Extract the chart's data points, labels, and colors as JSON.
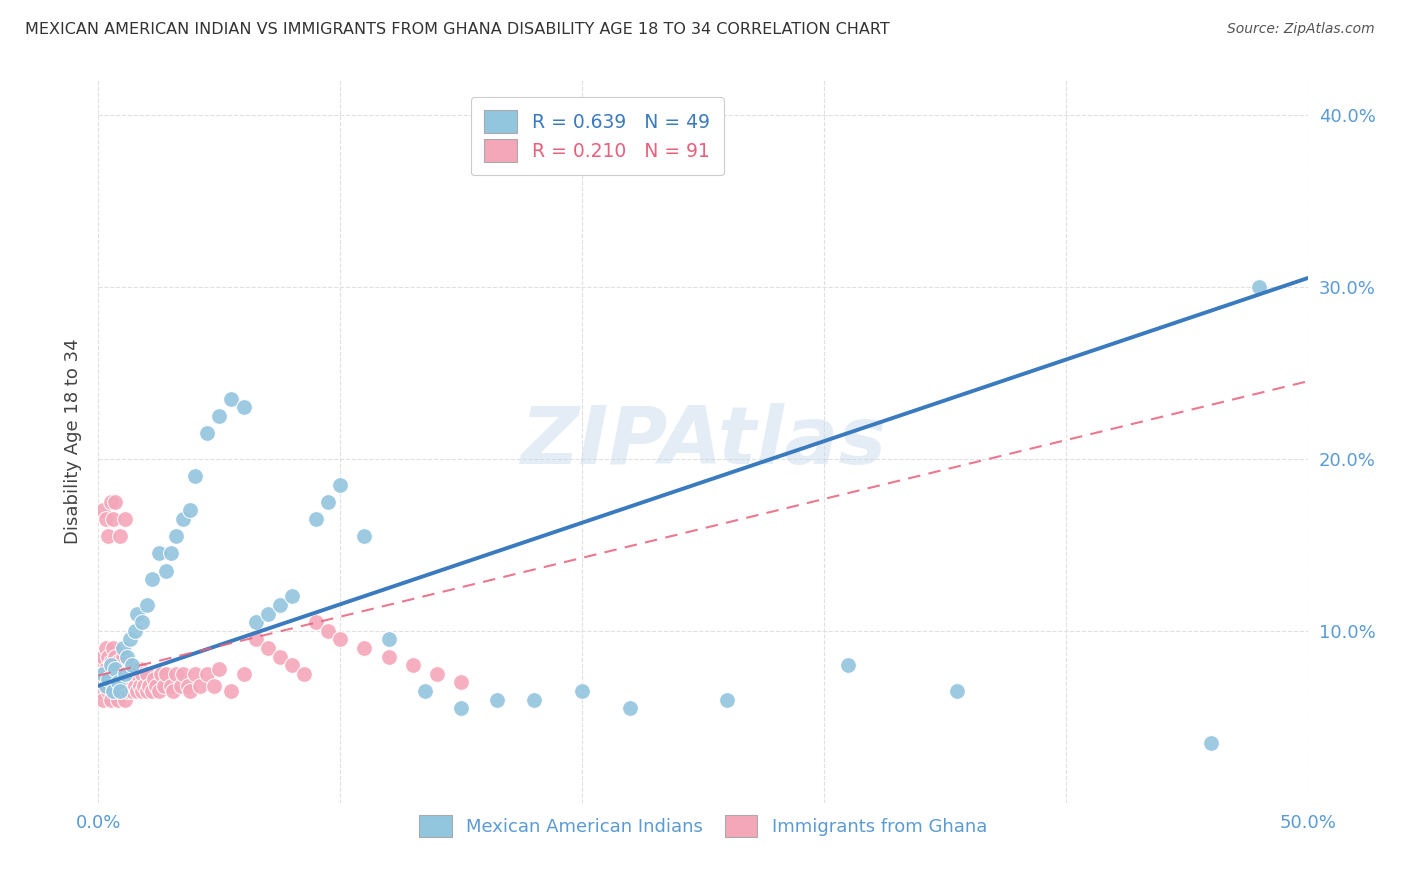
{
  "title": "MEXICAN AMERICAN INDIAN VS IMMIGRANTS FROM GHANA DISABILITY AGE 18 TO 34 CORRELATION CHART",
  "source": "Source: ZipAtlas.com",
  "ylabel": "Disability Age 18 to 34",
  "xlim": [
    0.0,
    0.5
  ],
  "ylim": [
    0.0,
    0.42
  ],
  "blue_color": "#92c5de",
  "pink_color": "#f4a7b9",
  "trend_blue": "#3a7abf",
  "trend_pink": "#e8607a",
  "background_color": "#ffffff",
  "grid_color": "#e0e0e0",
  "tick_color": "#5b9bd5",
  "blue_trend_x": [
    0.0,
    0.5
  ],
  "blue_trend_y": [
    0.068,
    0.305
  ],
  "pink_trend_x": [
    0.0,
    0.5
  ],
  "pink_trend_y": [
    0.074,
    0.245
  ],
  "blue_x": [
    0.002,
    0.003,
    0.004,
    0.005,
    0.006,
    0.007,
    0.008,
    0.009,
    0.01,
    0.011,
    0.012,
    0.013,
    0.014,
    0.015,
    0.016,
    0.018,
    0.02,
    0.022,
    0.025,
    0.028,
    0.03,
    0.032,
    0.035,
    0.038,
    0.04,
    0.045,
    0.05,
    0.055,
    0.06,
    0.065,
    0.07,
    0.075,
    0.08,
    0.09,
    0.095,
    0.1,
    0.11,
    0.12,
    0.135,
    0.15,
    0.165,
    0.18,
    0.2,
    0.22,
    0.26,
    0.31,
    0.355,
    0.46,
    0.48
  ],
  "blue_y": [
    0.075,
    0.068,
    0.072,
    0.08,
    0.065,
    0.078,
    0.07,
    0.065,
    0.09,
    0.075,
    0.085,
    0.095,
    0.08,
    0.1,
    0.11,
    0.105,
    0.115,
    0.13,
    0.145,
    0.135,
    0.145,
    0.155,
    0.165,
    0.17,
    0.19,
    0.215,
    0.225,
    0.235,
    0.23,
    0.105,
    0.11,
    0.115,
    0.12,
    0.165,
    0.175,
    0.185,
    0.155,
    0.095,
    0.065,
    0.055,
    0.06,
    0.06,
    0.065,
    0.055,
    0.06,
    0.08,
    0.065,
    0.035,
    0.3
  ],
  "pink_x": [
    0.001,
    0.001,
    0.001,
    0.002,
    0.002,
    0.002,
    0.003,
    0.003,
    0.003,
    0.004,
    0.004,
    0.004,
    0.005,
    0.005,
    0.005,
    0.006,
    0.006,
    0.006,
    0.007,
    0.007,
    0.007,
    0.008,
    0.008,
    0.008,
    0.009,
    0.009,
    0.01,
    0.01,
    0.01,
    0.011,
    0.011,
    0.012,
    0.012,
    0.013,
    0.013,
    0.014,
    0.014,
    0.015,
    0.015,
    0.016,
    0.016,
    0.017,
    0.017,
    0.018,
    0.018,
    0.019,
    0.02,
    0.02,
    0.021,
    0.022,
    0.023,
    0.024,
    0.025,
    0.026,
    0.027,
    0.028,
    0.03,
    0.031,
    0.032,
    0.034,
    0.035,
    0.037,
    0.038,
    0.04,
    0.042,
    0.045,
    0.048,
    0.05,
    0.055,
    0.06,
    0.065,
    0.07,
    0.075,
    0.08,
    0.085,
    0.09,
    0.095,
    0.1,
    0.11,
    0.12,
    0.13,
    0.14,
    0.15,
    0.002,
    0.003,
    0.004,
    0.005,
    0.006,
    0.007,
    0.009,
    0.011
  ],
  "pink_y": [
    0.065,
    0.075,
    0.08,
    0.06,
    0.072,
    0.085,
    0.068,
    0.078,
    0.09,
    0.065,
    0.075,
    0.085,
    0.06,
    0.072,
    0.082,
    0.068,
    0.078,
    0.09,
    0.065,
    0.075,
    0.085,
    0.06,
    0.072,
    0.082,
    0.068,
    0.078,
    0.065,
    0.075,
    0.085,
    0.06,
    0.07,
    0.065,
    0.075,
    0.068,
    0.078,
    0.065,
    0.075,
    0.068,
    0.078,
    0.065,
    0.075,
    0.068,
    0.078,
    0.065,
    0.075,
    0.068,
    0.065,
    0.075,
    0.068,
    0.065,
    0.072,
    0.068,
    0.065,
    0.075,
    0.068,
    0.075,
    0.068,
    0.065,
    0.075,
    0.068,
    0.075,
    0.068,
    0.065,
    0.075,
    0.068,
    0.075,
    0.068,
    0.078,
    0.065,
    0.075,
    0.095,
    0.09,
    0.085,
    0.08,
    0.075,
    0.105,
    0.1,
    0.095,
    0.09,
    0.085,
    0.08,
    0.075,
    0.07,
    0.17,
    0.165,
    0.155,
    0.175,
    0.165,
    0.175,
    0.155,
    0.165
  ]
}
